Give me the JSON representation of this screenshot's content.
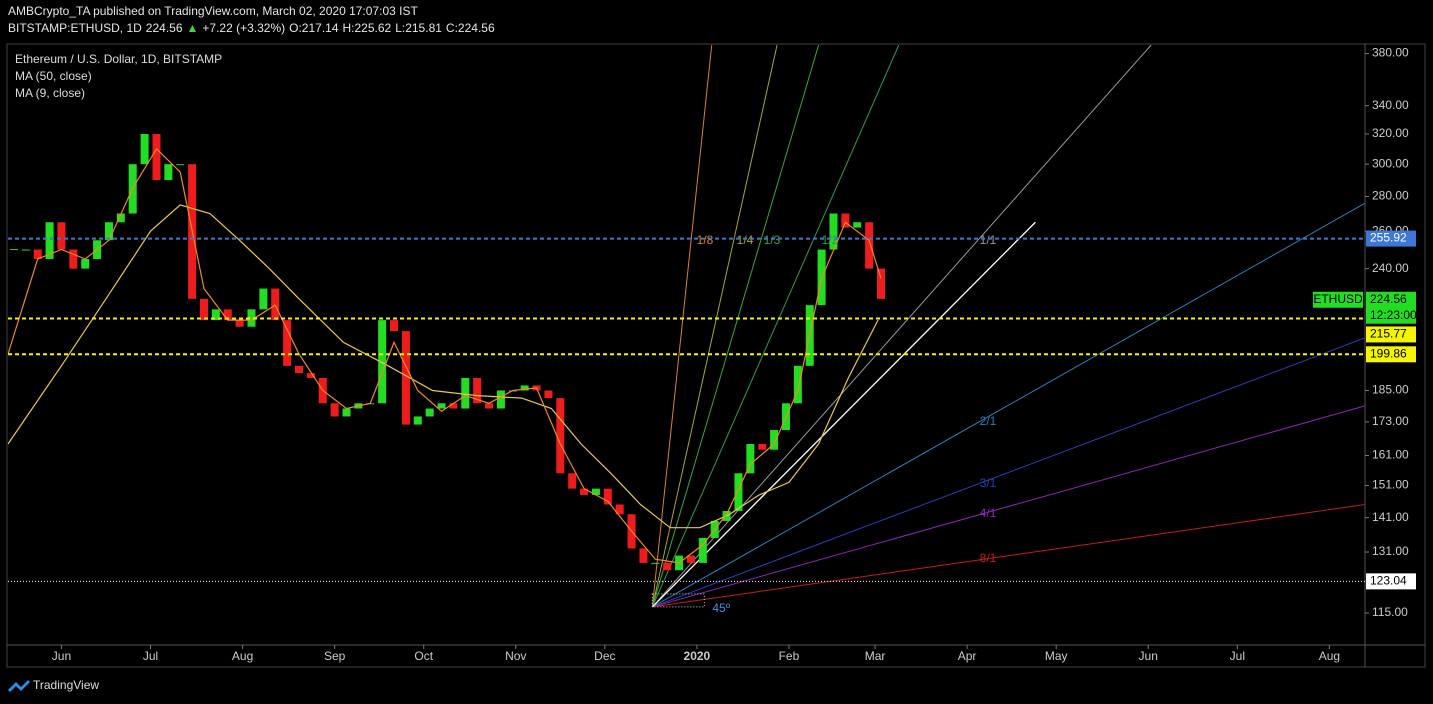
{
  "chart_data": {
    "type": "candlestick",
    "header": {
      "publisher": "AMBCrypto_TA published on TradingView.com, March 02, 2020 17:07:03 IST",
      "symbol": "BITSTAMP:ETHUSD, 1D",
      "last": "224.56",
      "arrow": "▲",
      "change": "+7.22 (+3.32%)",
      "open": "O:217.14",
      "high": "H:225.62",
      "low": "L:215.81",
      "close": "C:224.56"
    },
    "title": "Ethereum / U.S. Dollar, 1D, BITSTAMP",
    "footer": "TradingView",
    "log_scale": true,
    "xlim": [
      -18,
      439
    ],
    "ylim": [
      107.4,
      387
    ],
    "xticks": [
      {
        "value": 0,
        "label": "Jun"
      },
      {
        "value": 30,
        "label": "Jul"
      },
      {
        "value": 61,
        "label": "Aug"
      },
      {
        "value": 92,
        "label": "Sep"
      },
      {
        "value": 122,
        "label": "Oct"
      },
      {
        "value": 153,
        "label": "Nov"
      },
      {
        "value": 183,
        "label": "Dec"
      },
      {
        "value": 214,
        "label": "2020"
      },
      {
        "value": 245,
        "label": "Feb"
      },
      {
        "value": 274,
        "label": "Mar"
      },
      {
        "value": 305,
        "label": "Apr"
      },
      {
        "value": 335,
        "label": "May"
      },
      {
        "value": 366,
        "label": "Jun"
      },
      {
        "value": 396,
        "label": "Jul"
      },
      {
        "value": 427,
        "label": "Aug"
      }
    ],
    "yticks": [
      {
        "value": 380,
        "label": "380.00"
      },
      {
        "value": 340,
        "label": "340.00"
      },
      {
        "value": 320,
        "label": "320.00"
      },
      {
        "value": 300,
        "label": "300.00"
      },
      {
        "value": 280,
        "label": "280.00"
      },
      {
        "value": 260,
        "label": "260.00"
      },
      {
        "value": 240,
        "label": "240.00"
      },
      {
        "value": 185,
        "label": "185.00"
      },
      {
        "value": 173,
        "label": "173.00"
      },
      {
        "value": 161,
        "label": "161.00"
      },
      {
        "value": 151,
        "label": "151.00"
      },
      {
        "value": 141,
        "label": "141.00"
      },
      {
        "value": 131,
        "label": "131.00"
      },
      {
        "value": 115,
        "label": "115.00"
      }
    ],
    "series": [
      {
        "name": "ETHUSD",
        "kind": "candles",
        "up_color": "#22dd22",
        "down_color": "#ee1c1c",
        "x": [
          -16,
          -12,
          -8,
          -4,
          0,
          4,
          8,
          12,
          16,
          20,
          24,
          28,
          32,
          36,
          40,
          44,
          48,
          52,
          56,
          60,
          64,
          68,
          72,
          76,
          80,
          84,
          88,
          92,
          96,
          100,
          104,
          108,
          112,
          116,
          120,
          124,
          128,
          132,
          136,
          140,
          144,
          148,
          152,
          156,
          160,
          164,
          168,
          172,
          176,
          180,
          184,
          188,
          192,
          196,
          200,
          204,
          208,
          212,
          216,
          220,
          224,
          228,
          232,
          236,
          240,
          244,
          248,
          252,
          256,
          260,
          264,
          268,
          272,
          276
        ],
        "values": [
          250,
          250,
          245,
          265,
          250,
          240,
          245,
          255,
          265,
          270,
          300,
          320,
          290,
          300,
          300,
          225,
          215,
          220,
          215,
          212,
          220,
          230,
          215,
          195,
          192,
          190,
          180,
          175,
          178,
          180,
          180,
          215,
          210,
          172,
          175,
          178,
          180,
          178,
          190,
          180,
          178,
          185,
          185,
          187,
          185,
          182,
          155,
          150,
          148,
          150,
          145,
          142,
          132,
          128,
          128,
          126,
          130,
          128,
          135,
          140,
          143,
          155,
          165,
          163,
          170,
          180,
          195,
          222,
          250,
          270,
          262,
          265,
          240,
          225
        ]
      },
      {
        "name": "MA (50, close)",
        "kind": "line",
        "color": "#e8c94a",
        "x": [
          -18,
          0,
          15,
          30,
          40,
          50,
          60,
          70,
          80,
          95,
          110,
          125,
          140,
          155,
          165,
          175,
          185,
          195,
          205,
          215,
          225,
          235,
          245,
          255,
          265,
          275
        ],
        "values": [
          165,
          195,
          225,
          260,
          275,
          270,
          255,
          240,
          225,
          205,
          195,
          185,
          183,
          182,
          178,
          165,
          155,
          145,
          138,
          138,
          142,
          148,
          152,
          165,
          190,
          215
        ]
      },
      {
        "name": "MA (9, close)",
        "kind": "line",
        "color": "#f08a24",
        "x": [
          -18,
          -8,
          0,
          8,
          16,
          24,
          32,
          40,
          48,
          56,
          64,
          72,
          80,
          88,
          96,
          104,
          112,
          120,
          128,
          136,
          144,
          152,
          160,
          168,
          176,
          184,
          192,
          200,
          208,
          216,
          224,
          232,
          240,
          248,
          256,
          264,
          272,
          276
        ],
        "values": [
          200,
          245,
          250,
          245,
          255,
          285,
          310,
          295,
          230,
          215,
          215,
          222,
          200,
          185,
          178,
          180,
          205,
          185,
          177,
          183,
          180,
          185,
          186,
          165,
          150,
          146,
          137,
          129,
          128,
          133,
          142,
          158,
          165,
          185,
          235,
          265,
          255,
          235
        ]
      }
    ],
    "last_price": {
      "value": 224.56,
      "countdown": "12:23:00",
      "color": "#22dd22"
    },
    "levels": [
      {
        "value": 255.92,
        "color": "#3d78d8",
        "style": "dashed"
      },
      {
        "value": 215.77,
        "color": "#f5f500",
        "style": "dashed"
      },
      {
        "value": 199.86,
        "color": "#f5f500",
        "style": "dashed"
      },
      {
        "value": 123.04,
        "color": "#ffffff",
        "style": "dotted"
      }
    ],
    "fan": {
      "origin": {
        "x": 199,
        "y": 116.5
      },
      "angle_label": "45º",
      "rays": [
        {
          "label": "1/8",
          "color": "#d9822b",
          "end": {
            "x": 219,
            "y": 387
          }
        },
        {
          "label": "1/4",
          "color": "#a5a72a",
          "end": {
            "x": 241,
            "y": 387
          }
        },
        {
          "label": "1/3",
          "color": "#3aa83a",
          "end": {
            "x": 255,
            "y": 387
          }
        },
        {
          "label": "1/2",
          "color": "#2e9e4e",
          "end": {
            "x": 282,
            "y": 387
          }
        },
        {
          "label": "1/1",
          "color": "#9a9a9a",
          "end": {
            "x": 367,
            "y": 387
          }
        },
        {
          "label": "2/1",
          "color": "#2a7fb8",
          "end": {
            "x": 439,
            "y": 276
          }
        },
        {
          "label": "3/1",
          "color": "#2a3fb8",
          "end": {
            "x": 439,
            "y": 207
          }
        },
        {
          "label": "4/1",
          "color": "#8a2ab8",
          "end": {
            "x": 439,
            "y": 179
          }
        },
        {
          "label": "8/1",
          "color": "#c41e1e",
          "end": {
            "x": 439,
            "y": 145
          }
        }
      ]
    },
    "trendline": {
      "color": "#ffffff",
      "start": {
        "x": 199,
        "y": 116.5
      },
      "end": {
        "x": 328,
        "y": 265
      }
    }
  }
}
